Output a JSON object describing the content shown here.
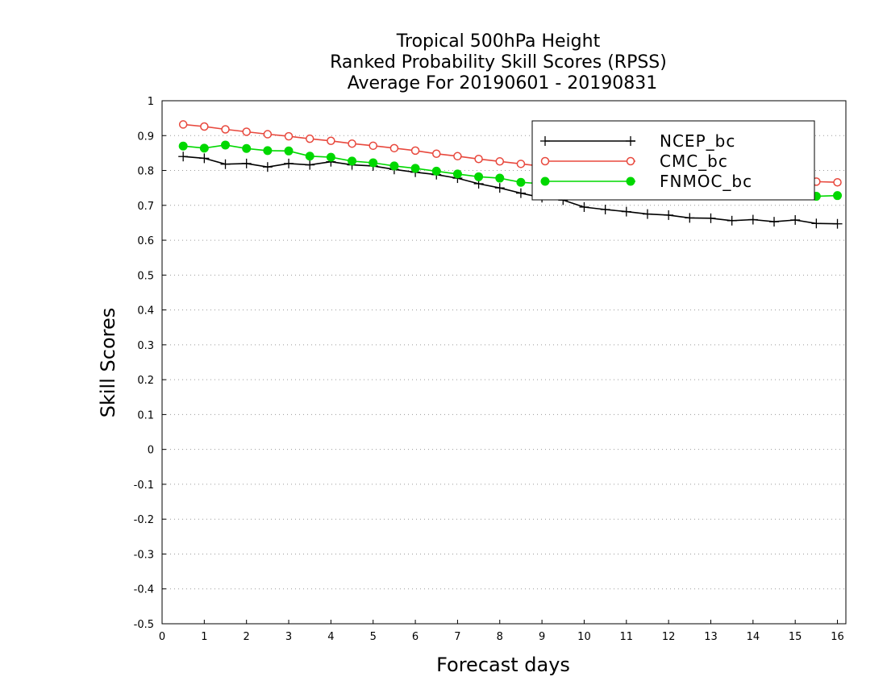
{
  "chart_data": {
    "type": "line",
    "title_lines": [
      "Tropical 500hPa Height",
      "Ranked Probability Skill Scores (RPSS)",
      "Average For 20190601 - 20190831"
    ],
    "xlabel": "Forecast days",
    "ylabel": "Skill Scores",
    "xlim": [
      0,
      16.2
    ],
    "ylim": [
      -0.5,
      1
    ],
    "x_ticks": [
      "0",
      "1",
      "2",
      "3",
      "4",
      "5",
      "6",
      "7",
      "8",
      "9",
      "10",
      "11",
      "12",
      "13",
      "14",
      "15",
      "16"
    ],
    "y_ticks": [
      "1",
      "0.9",
      "0.8",
      "0.7",
      "0.6",
      "0.5",
      "0.4",
      "0.3",
      "0.2",
      "0.1",
      "0",
      "-0.1",
      "-0.2",
      "-0.3",
      "-0.4",
      "-0.5"
    ],
    "grid": "horizontal dotted",
    "legend_position": "top-right",
    "x": [
      0.5,
      1,
      1.5,
      2,
      2.5,
      3,
      3.5,
      4,
      4.5,
      5,
      5.5,
      6,
      6.5,
      7,
      7.5,
      8,
      8.5,
      9,
      9.5,
      10,
      10.5,
      11,
      11.5,
      12,
      12.5,
      13,
      13.5,
      14,
      14.5,
      15,
      15.5,
      16
    ],
    "series": [
      {
        "name": "NCEP_bc",
        "color": "#000000",
        "marker": "plus",
        "values": [
          0.84,
          0.835,
          0.818,
          0.82,
          0.81,
          0.82,
          0.816,
          0.825,
          0.816,
          0.813,
          0.803,
          0.795,
          0.788,
          0.778,
          0.762,
          0.75,
          0.735,
          0.722,
          0.715,
          0.695,
          0.688,
          0.682,
          0.675,
          0.672,
          0.664,
          0.663,
          0.656,
          0.659,
          0.653,
          0.658,
          0.648,
          0.647
        ]
      },
      {
        "name": "CMC_bc",
        "color": "#e8483d",
        "marker": "open-circle",
        "values": [
          0.932,
          0.926,
          0.918,
          0.911,
          0.904,
          0.898,
          0.891,
          0.885,
          0.877,
          0.871,
          0.864,
          0.857,
          0.848,
          0.841,
          0.833,
          0.826,
          0.819,
          0.812,
          0.807,
          0.803,
          0.797,
          0.792,
          0.788,
          0.784,
          0.78,
          0.778,
          0.775,
          0.772,
          0.77,
          0.769,
          0.768,
          0.766
        ]
      },
      {
        "name": "FNMOC_bc",
        "color": "#00d800",
        "marker": "filled-circle",
        "values": [
          0.87,
          0.864,
          0.873,
          0.863,
          0.857,
          0.856,
          0.841,
          0.838,
          0.827,
          0.822,
          0.813,
          0.806,
          0.798,
          0.79,
          0.782,
          0.778,
          0.766,
          0.762,
          0.756,
          0.752,
          0.748,
          0.745,
          0.742,
          0.74,
          0.738,
          0.736,
          0.735,
          0.733,
          0.731,
          0.73,
          0.726,
          0.728
        ]
      }
    ]
  }
}
